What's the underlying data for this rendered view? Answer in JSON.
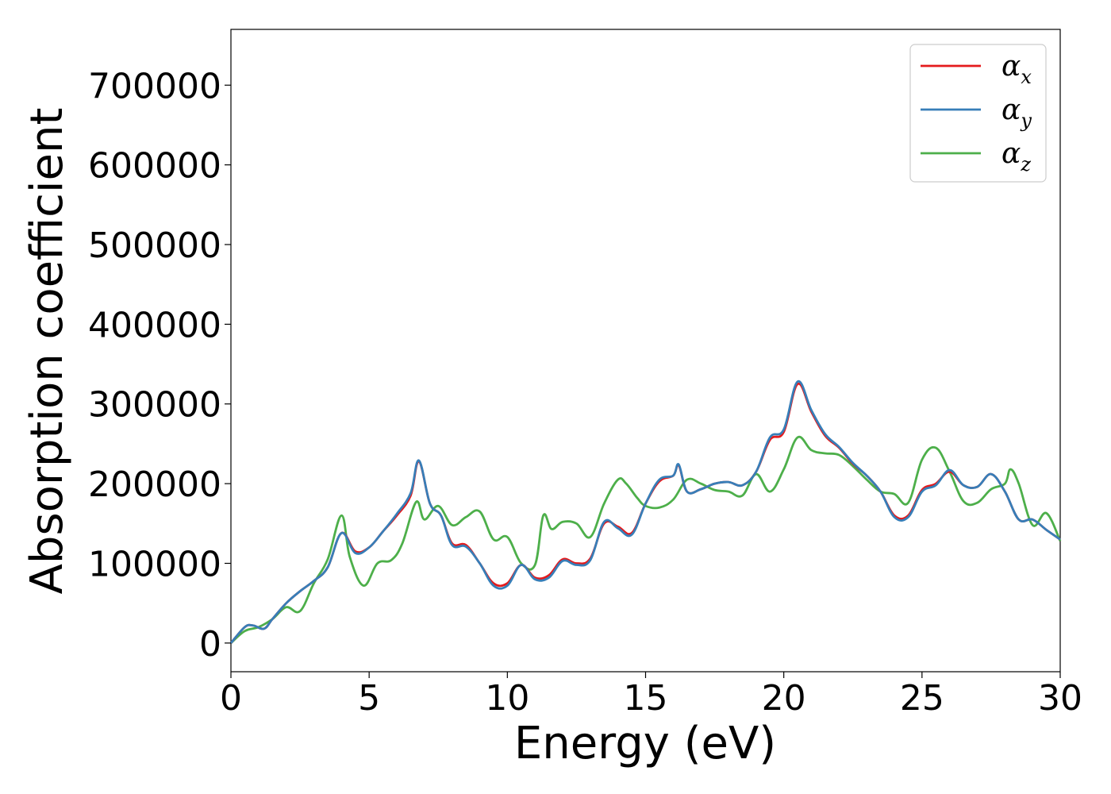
{
  "chart_data": {
    "type": "line",
    "title": "",
    "xlabel": "Energy (eV)",
    "ylabel": "Absorption coefficient",
    "xlim": [
      0,
      30
    ],
    "ylim": [
      -36000,
      770000
    ],
    "xticks": [
      0,
      5,
      10,
      15,
      20,
      25,
      30
    ],
    "xtick_labels": [
      "0",
      "5",
      "10",
      "15",
      "20",
      "25",
      "30"
    ],
    "yticks": [
      0,
      100000,
      200000,
      300000,
      400000,
      500000,
      600000,
      700000
    ],
    "ytick_labels": [
      "0",
      "100000",
      "200000",
      "300000",
      "400000",
      "500000",
      "600000",
      "700000"
    ],
    "grid": false,
    "legend_position": "top-right",
    "series": [
      {
        "name": "αx",
        "symbol": "α",
        "subscript": "x",
        "color": "#e41a1c",
        "x": [
          0,
          0.5,
          0.8,
          1.2,
          1.5,
          2,
          2.5,
          3,
          3.5,
          4,
          4.5,
          5,
          5.5,
          6,
          6.5,
          6.8,
          7.2,
          7.6,
          8,
          8.5,
          9,
          9.5,
          10,
          10.5,
          11,
          11.5,
          12,
          12.5,
          13,
          13.5,
          14,
          14.5,
          15,
          15.5,
          16,
          16.2,
          16.5,
          17,
          17.5,
          18,
          18.5,
          19,
          19.5,
          20,
          20.5,
          21,
          21.5,
          22,
          22.5,
          23,
          23.5,
          24,
          24.5,
          25,
          25.5,
          26,
          26.5,
          27,
          27.5,
          28,
          28.5,
          29,
          29.5,
          30
        ],
        "y": [
          0,
          20000,
          22000,
          18000,
          30000,
          50000,
          65000,
          78000,
          95000,
          138000,
          115000,
          120000,
          140000,
          160000,
          185000,
          228000,
          175000,
          160000,
          125000,
          123000,
          100000,
          75000,
          75000,
          98000,
          82000,
          85000,
          105000,
          100000,
          106000,
          150000,
          146000,
          138000,
          175000,
          203000,
          210000,
          223000,
          190000,
          193000,
          200000,
          202000,
          198000,
          215000,
          255000,
          265000,
          325000,
          290000,
          260000,
          245000,
          225000,
          210000,
          190000,
          160000,
          160000,
          192000,
          200000,
          215000,
          198000,
          196000,
          212000,
          190000,
          155000,
          155000,
          142000,
          130000
        ]
      },
      {
        "name": "αy",
        "symbol": "α",
        "subscript": "y",
        "color": "#377eb8",
        "x": [
          0,
          0.5,
          0.8,
          1.2,
          1.5,
          2,
          2.5,
          3,
          3.5,
          4,
          4.5,
          5,
          5.5,
          6,
          6.5,
          6.8,
          7.2,
          7.6,
          8,
          8.5,
          9,
          9.5,
          10,
          10.5,
          11,
          11.5,
          12,
          12.5,
          13,
          13.5,
          14,
          14.5,
          15,
          15.5,
          16,
          16.2,
          16.5,
          17,
          17.5,
          18,
          18.5,
          19,
          19.5,
          20,
          20.5,
          21,
          21.5,
          22,
          22.5,
          23,
          23.5,
          24,
          24.5,
          25,
          25.5,
          26,
          26.5,
          27,
          27.5,
          28,
          28.5,
          29,
          29.5,
          30
        ],
        "y": [
          0,
          20000,
          22000,
          18000,
          30000,
          50000,
          65000,
          78000,
          95000,
          138000,
          113000,
          120000,
          140000,
          162000,
          188000,
          229000,
          175000,
          160000,
          123000,
          121000,
          100000,
          72000,
          72000,
          98000,
          80000,
          82000,
          103000,
          98000,
          104000,
          152000,
          144000,
          136000,
          175000,
          205000,
          210000,
          224000,
          190000,
          193000,
          200000,
          202000,
          198000,
          215000,
          258000,
          268000,
          328000,
          292000,
          262000,
          246000,
          226000,
          210000,
          190000,
          158000,
          158000,
          190000,
          198000,
          217000,
          198000,
          196000,
          212000,
          190000,
          155000,
          155000,
          142000,
          130000
        ]
      },
      {
        "name": "αz",
        "symbol": "α",
        "subscript": "z",
        "color": "#4daf4a",
        "x": [
          0,
          0.5,
          1,
          1.5,
          2,
          2.5,
          3,
          3.5,
          4,
          4.3,
          4.8,
          5.3,
          5.8,
          6.2,
          6.7,
          7,
          7.5,
          8,
          8.5,
          9,
          9.5,
          10,
          10.5,
          11,
          11.3,
          11.6,
          12,
          12.5,
          13,
          13.5,
          14,
          14.3,
          14.7,
          15,
          15.5,
          16,
          16.5,
          17,
          17.5,
          18,
          18.5,
          19,
          19.5,
          20,
          20.5,
          21,
          21.5,
          22,
          22.5,
          23,
          23.5,
          24,
          24.5,
          25,
          25.5,
          26,
          26.5,
          27,
          27.5,
          28,
          28.2,
          28.5,
          29,
          29.5,
          30
        ],
        "y": [
          0,
          15000,
          20000,
          30000,
          45000,
          40000,
          75000,
          105000,
          160000,
          108000,
          72000,
          100000,
          104000,
          125000,
          177000,
          155000,
          172000,
          148000,
          158000,
          165000,
          130000,
          133000,
          100000,
          98000,
          160000,
          143000,
          152000,
          150000,
          133000,
          175000,
          205000,
          200000,
          182000,
          172000,
          170000,
          180000,
          205000,
          200000,
          192000,
          190000,
          185000,
          212000,
          190000,
          218000,
          258000,
          242000,
          238000,
          236000,
          222000,
          205000,
          190000,
          187000,
          176000,
          230000,
          245000,
          215000,
          178000,
          176000,
          193000,
          200000,
          218000,
          200000,
          148000,
          163000,
          128000
        ]
      }
    ]
  }
}
